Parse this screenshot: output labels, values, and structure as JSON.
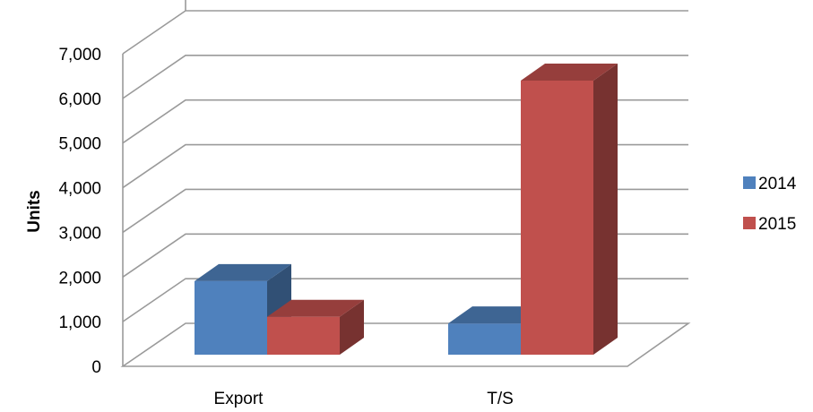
{
  "chart_data": {
    "type": "bar",
    "style": "3d-clustered-column",
    "categories": [
      "Export",
      "T/S"
    ],
    "series": [
      {
        "name": "2014",
        "values": [
          1650,
          700
        ],
        "color": "#4f81bd"
      },
      {
        "name": "2015",
        "values": [
          850,
          6150
        ],
        "color": "#c0504d"
      }
    ],
    "title": "",
    "xlabel": "",
    "ylabel": "Units",
    "ylim": [
      0,
      7000
    ],
    "yticks": [
      0,
      1000,
      2000,
      3000,
      4000,
      5000,
      6000,
      7000
    ],
    "ytick_labels": [
      "0",
      "1,000",
      "2,000",
      "3,000",
      "4,000",
      "5,000",
      "6,000",
      "7,000"
    ],
    "grid": true,
    "legend_position": "right"
  }
}
